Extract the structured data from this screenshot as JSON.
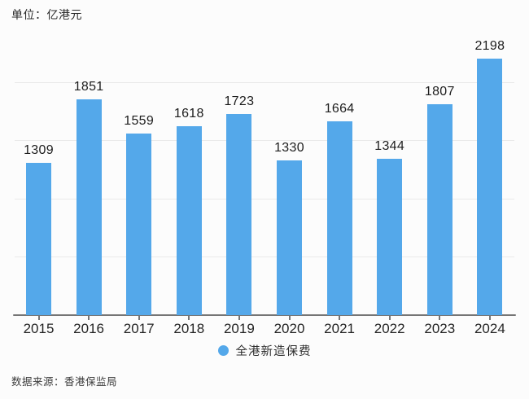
{
  "unit_label": "单位：亿港元",
  "source_label": "数据来源：香港保监局",
  "legend": {
    "label": "全港新造保费",
    "dot_color": "#54a8ea"
  },
  "colors": {
    "bar": "#54a8ea",
    "gridline": "#e9e9e9",
    "axis": "#757575",
    "value_text": "#1d1d1d"
  },
  "chart_data": {
    "type": "bar",
    "title": "单位：亿港元",
    "categories": [
      "2015",
      "2016",
      "2017",
      "2018",
      "2019",
      "2020",
      "2021",
      "2022",
      "2023",
      "2024"
    ],
    "values": [
      1309,
      1851,
      1559,
      1618,
      1723,
      1330,
      1664,
      1344,
      1807,
      2198
    ],
    "series_name": "全港新造保费",
    "unit": "亿港元",
    "xlabel": "",
    "ylabel": "",
    "ylim": [
      0,
      2500
    ],
    "gridlines": [
      500,
      1000,
      1500,
      2000
    ],
    "grid": true,
    "legend_position": "bottom",
    "source": "数据来源：香港保监局",
    "value_labels_shown": true,
    "y_axis_tick_labels_shown": false
  }
}
